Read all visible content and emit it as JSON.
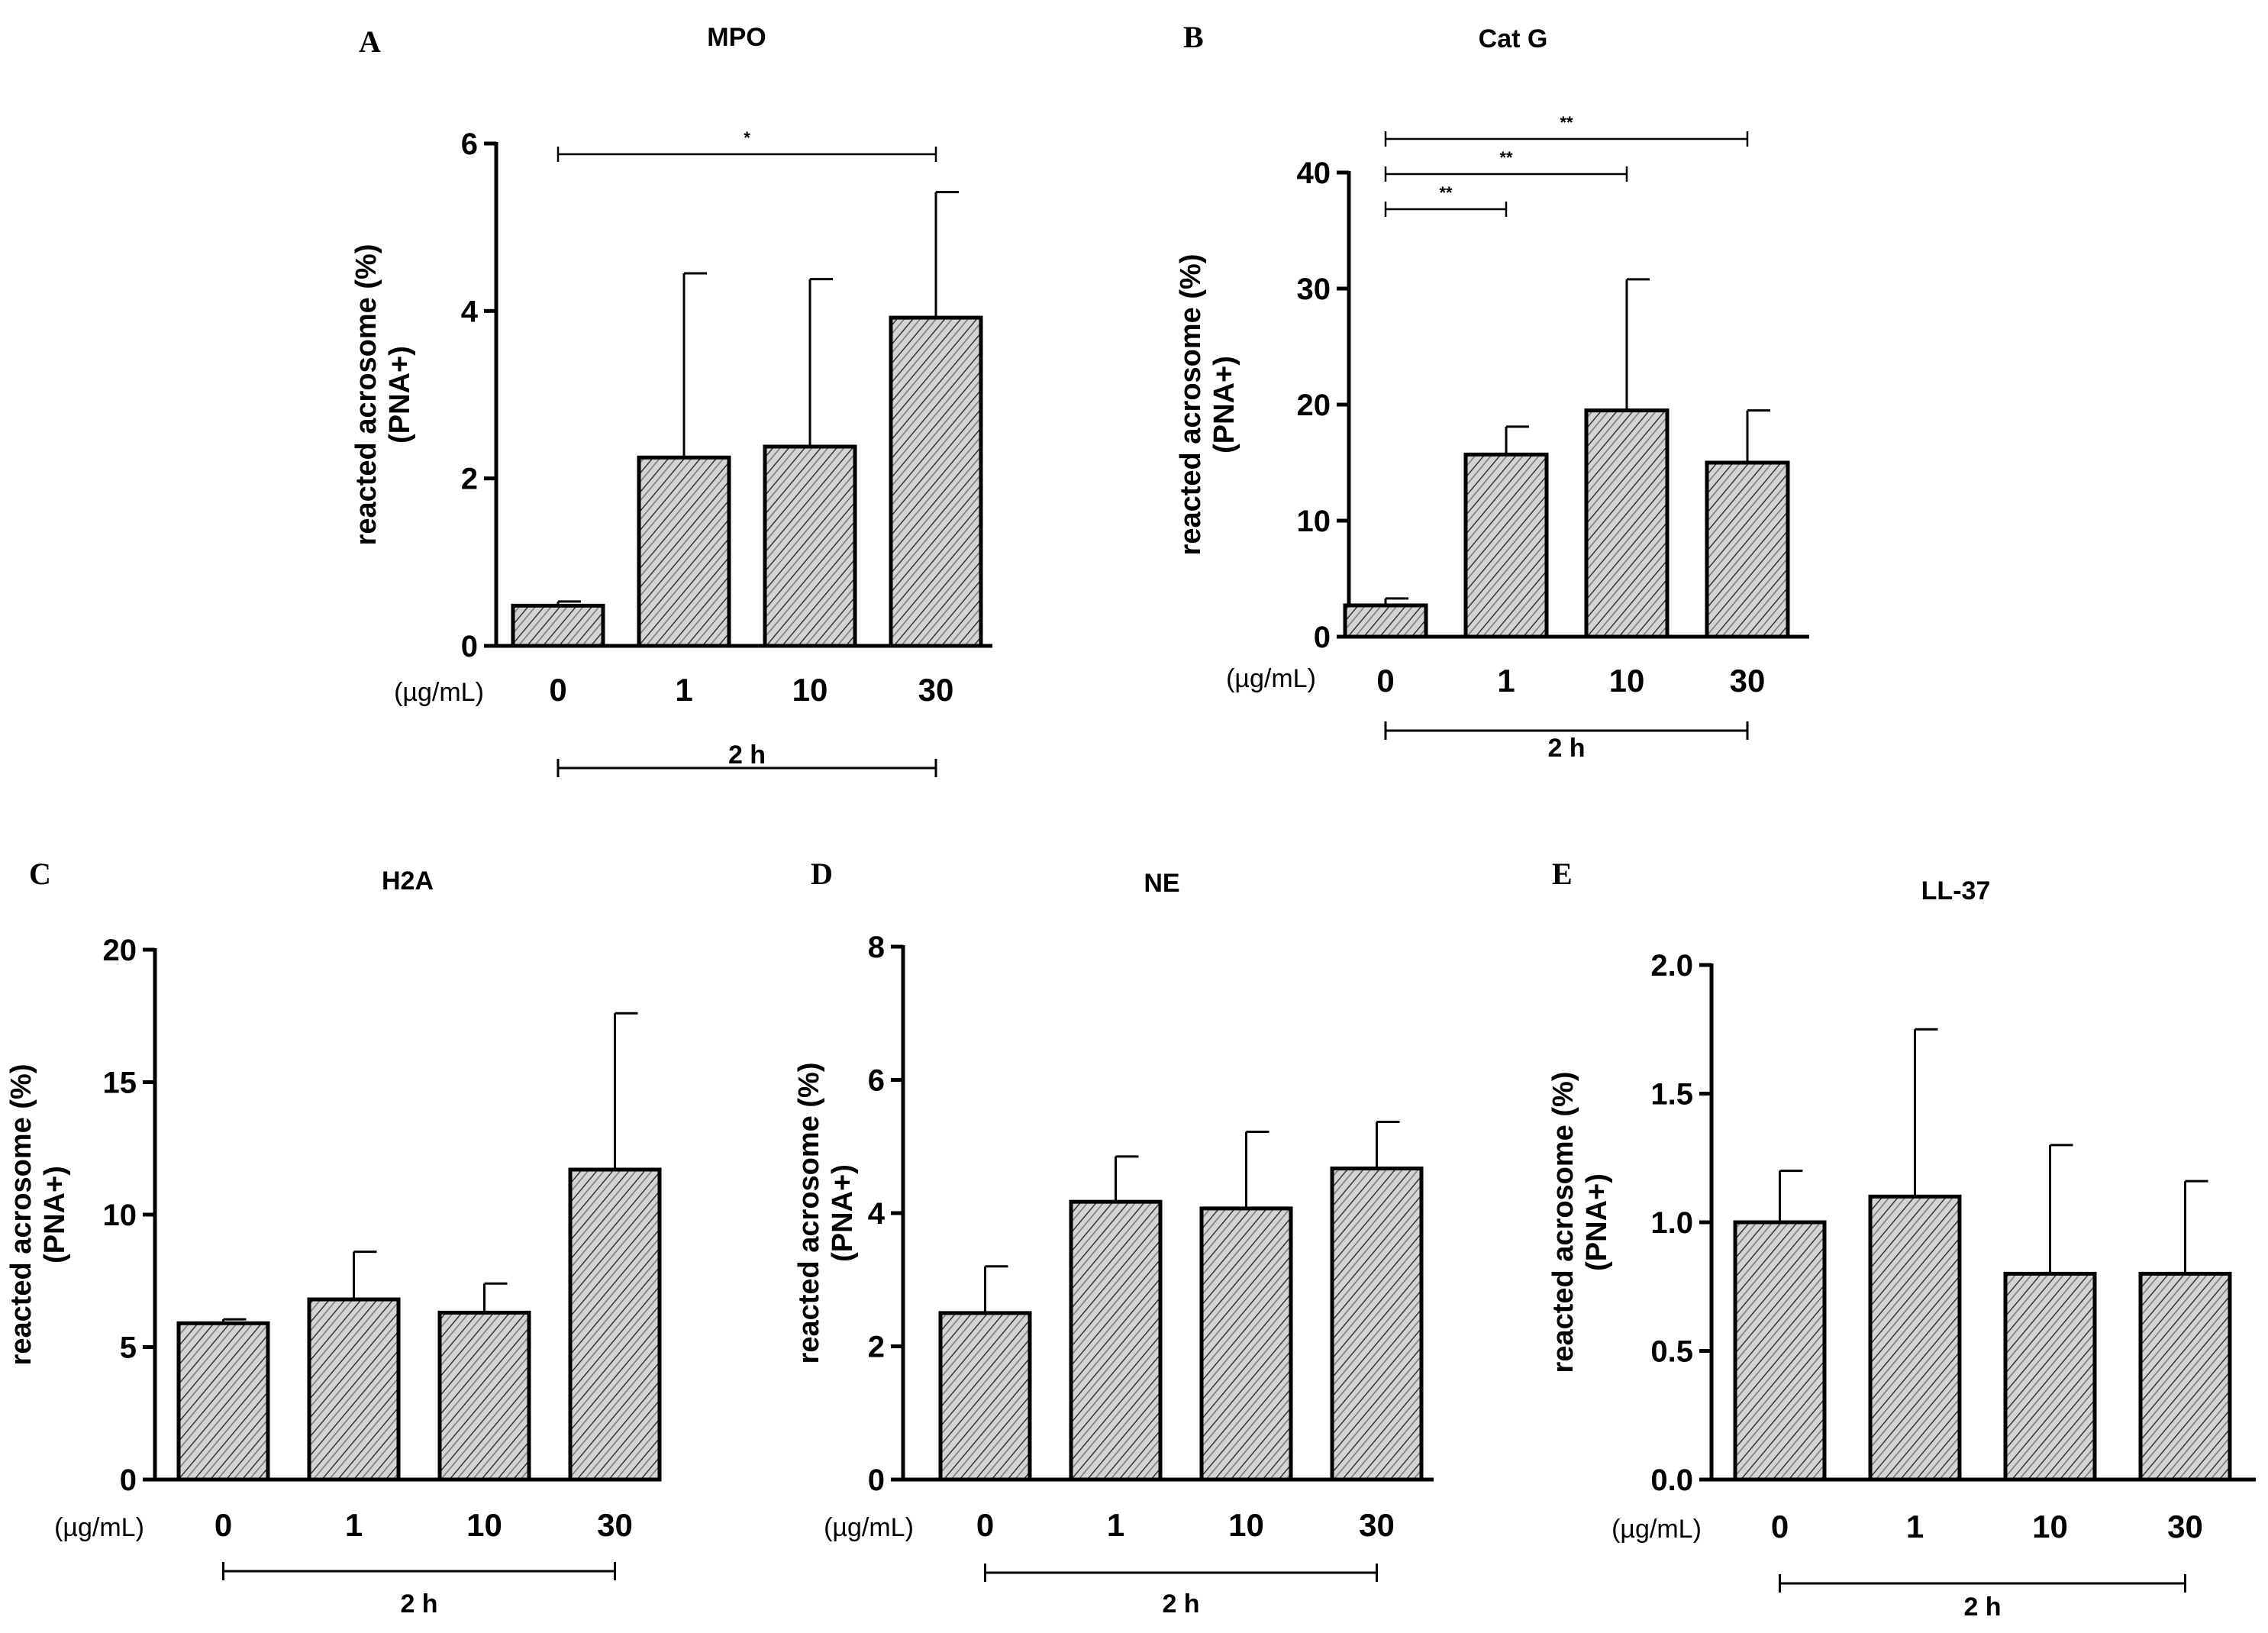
{
  "figure": {
    "background": "#ffffff",
    "bar_fill": "#d4d4d4",
    "ink": "#000000"
  },
  "chart_data": [
    {
      "id": "A",
      "letter": "A",
      "type": "bar",
      "title": "MPO",
      "categories": [
        "0",
        "1",
        "10",
        "30"
      ],
      "values": [
        0.48,
        2.25,
        2.38,
        3.92
      ],
      "errors": [
        0.05,
        2.2,
        2.0,
        1.5
      ],
      "ylim": [
        0,
        6
      ],
      "yticks": [
        "0",
        "2",
        "4",
        "6"
      ],
      "ytick_values": [
        0,
        2,
        4,
        6
      ],
      "ylabel_line1": "reacted acrosome (%)",
      "ylabel_line2": "(PNA+)",
      "unit_label": "(µg/mL)",
      "time_label": "2 h",
      "significance": [
        {
          "from": 0,
          "to": 3,
          "label": "*"
        }
      ]
    },
    {
      "id": "B",
      "letter": "B",
      "type": "bar",
      "title": "Cat G",
      "categories": [
        "0",
        "1",
        "10",
        "30"
      ],
      "values": [
        2.7,
        15.7,
        19.5,
        15.0
      ],
      "errors": [
        0.6,
        2.4,
        11.3,
        4.5
      ],
      "ylim": [
        0,
        40
      ],
      "yticks": [
        "0",
        "10",
        "20",
        "30",
        "40"
      ],
      "ytick_values": [
        0,
        10,
        20,
        30,
        40
      ],
      "ylabel_line1": "reacted acrosome (%)",
      "ylabel_line2": "(PNA+)",
      "unit_label": "(µg/mL)",
      "time_label": "2 h",
      "significance": [
        {
          "from": 0,
          "to": 1,
          "label": "**"
        },
        {
          "from": 0,
          "to": 2,
          "label": "**"
        },
        {
          "from": 0,
          "to": 3,
          "label": "**"
        }
      ]
    },
    {
      "id": "C",
      "letter": "C",
      "type": "bar",
      "title": "H2A",
      "categories": [
        "0",
        "1",
        "10",
        "30"
      ],
      "values": [
        5.9,
        6.8,
        6.3,
        11.7
      ],
      "errors": [
        0.15,
        1.8,
        1.1,
        5.9
      ],
      "ylim": [
        0,
        20
      ],
      "yticks": [
        "0",
        "5",
        "10",
        "15",
        "20"
      ],
      "ytick_values": [
        0,
        5,
        10,
        15,
        20
      ],
      "ylabel_line1": "reacted acrosome (%)",
      "ylabel_line2": "(PNA+)",
      "unit_label": "(µg/mL)",
      "time_label": "2 h",
      "significance": []
    },
    {
      "id": "D",
      "letter": "D",
      "type": "bar",
      "title": "NE",
      "categories": [
        "0",
        "1",
        "10",
        "30"
      ],
      "values": [
        2.5,
        4.17,
        4.07,
        4.67
      ],
      "errors": [
        0.7,
        0.68,
        1.15,
        0.7
      ],
      "ylim": [
        0,
        8
      ],
      "yticks": [
        "0",
        "2",
        "4",
        "6",
        "8"
      ],
      "ytick_values": [
        0,
        2,
        4,
        6,
        8
      ],
      "ylabel_line1": "reacted acrosome (%)",
      "ylabel_line2": "(PNA+)",
      "unit_label": "(µg/mL)",
      "time_label": "2 h",
      "significance": []
    },
    {
      "id": "E",
      "letter": "E",
      "type": "bar",
      "title": "LL-37",
      "categories": [
        "0",
        "1",
        "10",
        "30"
      ],
      "values": [
        1.0,
        1.1,
        0.8,
        0.8
      ],
      "errors": [
        0.2,
        0.65,
        0.5,
        0.36
      ],
      "ylim": [
        0,
        2
      ],
      "yticks": [
        "0.0",
        "0.5",
        "1.0",
        "1.5",
        "2.0"
      ],
      "ytick_values": [
        0,
        0.5,
        1,
        1.5,
        2
      ],
      "ylabel_line1": "reacted acrosome (%)",
      "ylabel_line2": "(PNA+)",
      "unit_label": "(µg/mL)",
      "time_label": "2 h",
      "significance": []
    }
  ]
}
